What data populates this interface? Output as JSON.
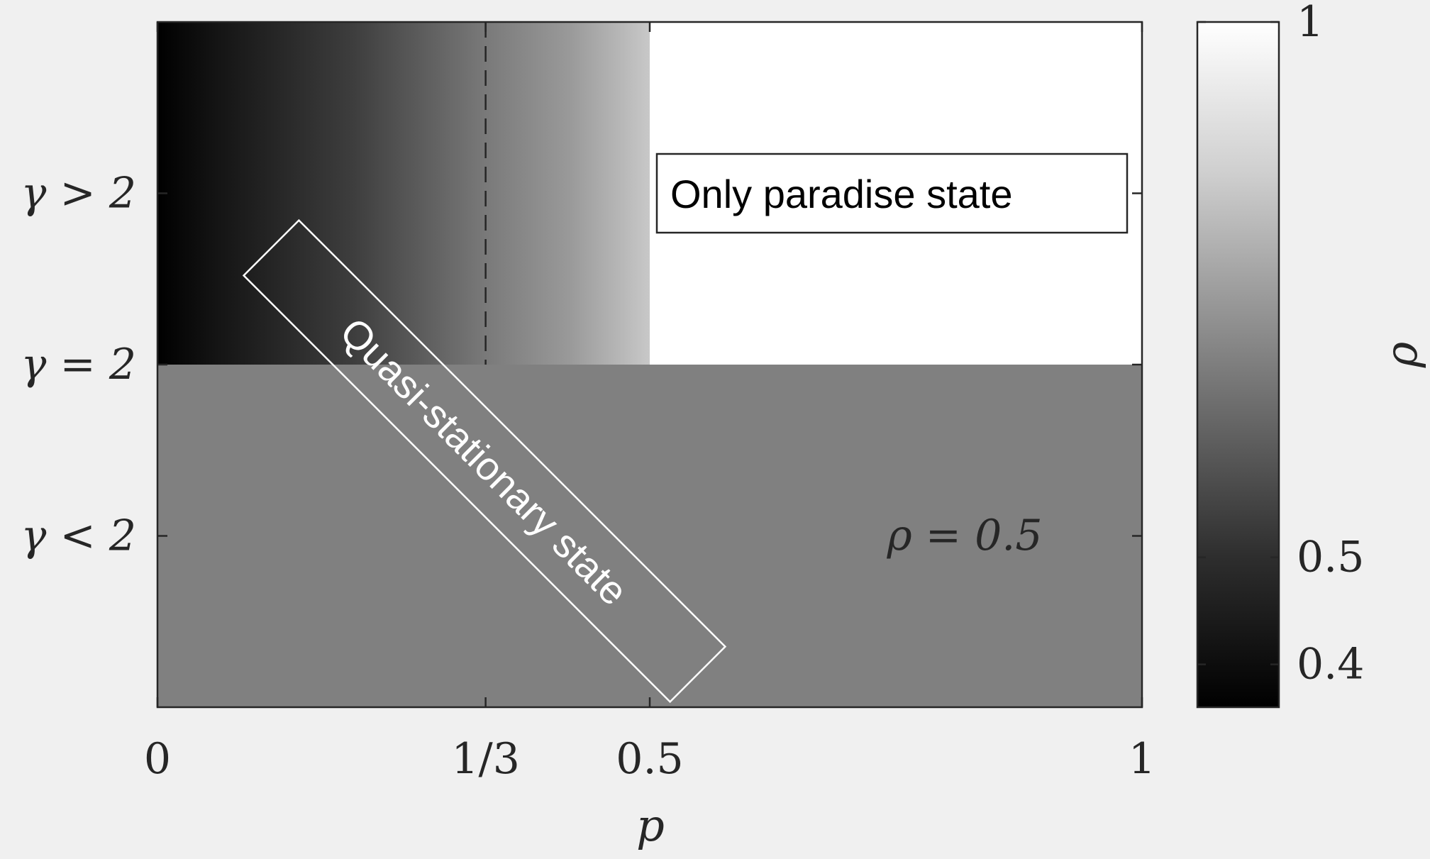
{
  "chart_data": {
    "type": "heatmap",
    "title": "",
    "xlabel": "p",
    "ylabel": "",
    "xlim": [
      0,
      1
    ],
    "x_ticks": [
      {
        "value": 0,
        "label": "0"
      },
      {
        "value": 0.3333,
        "label": "1/3"
      },
      {
        "value": 0.5,
        "label": "0.5"
      },
      {
        "value": 1,
        "label": "1"
      }
    ],
    "y_categories": [
      {
        "label": "γ > 2"
      },
      {
        "label": "γ = 2"
      },
      {
        "label": "γ < 2"
      }
    ],
    "regions": [
      {
        "gamma": "γ > 2",
        "p_range": [
          0,
          0.5
        ],
        "rho_range": [
          0.36,
          0.75
        ],
        "pattern": "gradient in p"
      },
      {
        "gamma": "γ > 2",
        "p_range": [
          0.5,
          1
        ],
        "rho": 1
      },
      {
        "gamma": "γ < 2",
        "p_range": [
          0,
          1
        ],
        "rho": 0.5
      }
    ],
    "dashed_line_p": 0.3333,
    "annotations": [
      {
        "text": "Only paradise state"
      },
      {
        "text": "Quasi-stationary state"
      },
      {
        "text": "ρ = 0.5"
      }
    ],
    "colorbar": {
      "label": "ρ",
      "range": [
        0.36,
        1
      ],
      "ticks": [
        {
          "value": 1,
          "label": "1"
        },
        {
          "value": 0.5,
          "label": "0.5"
        },
        {
          "value": 0.4,
          "label": "0.4"
        }
      ],
      "colormap": "gray"
    }
  }
}
